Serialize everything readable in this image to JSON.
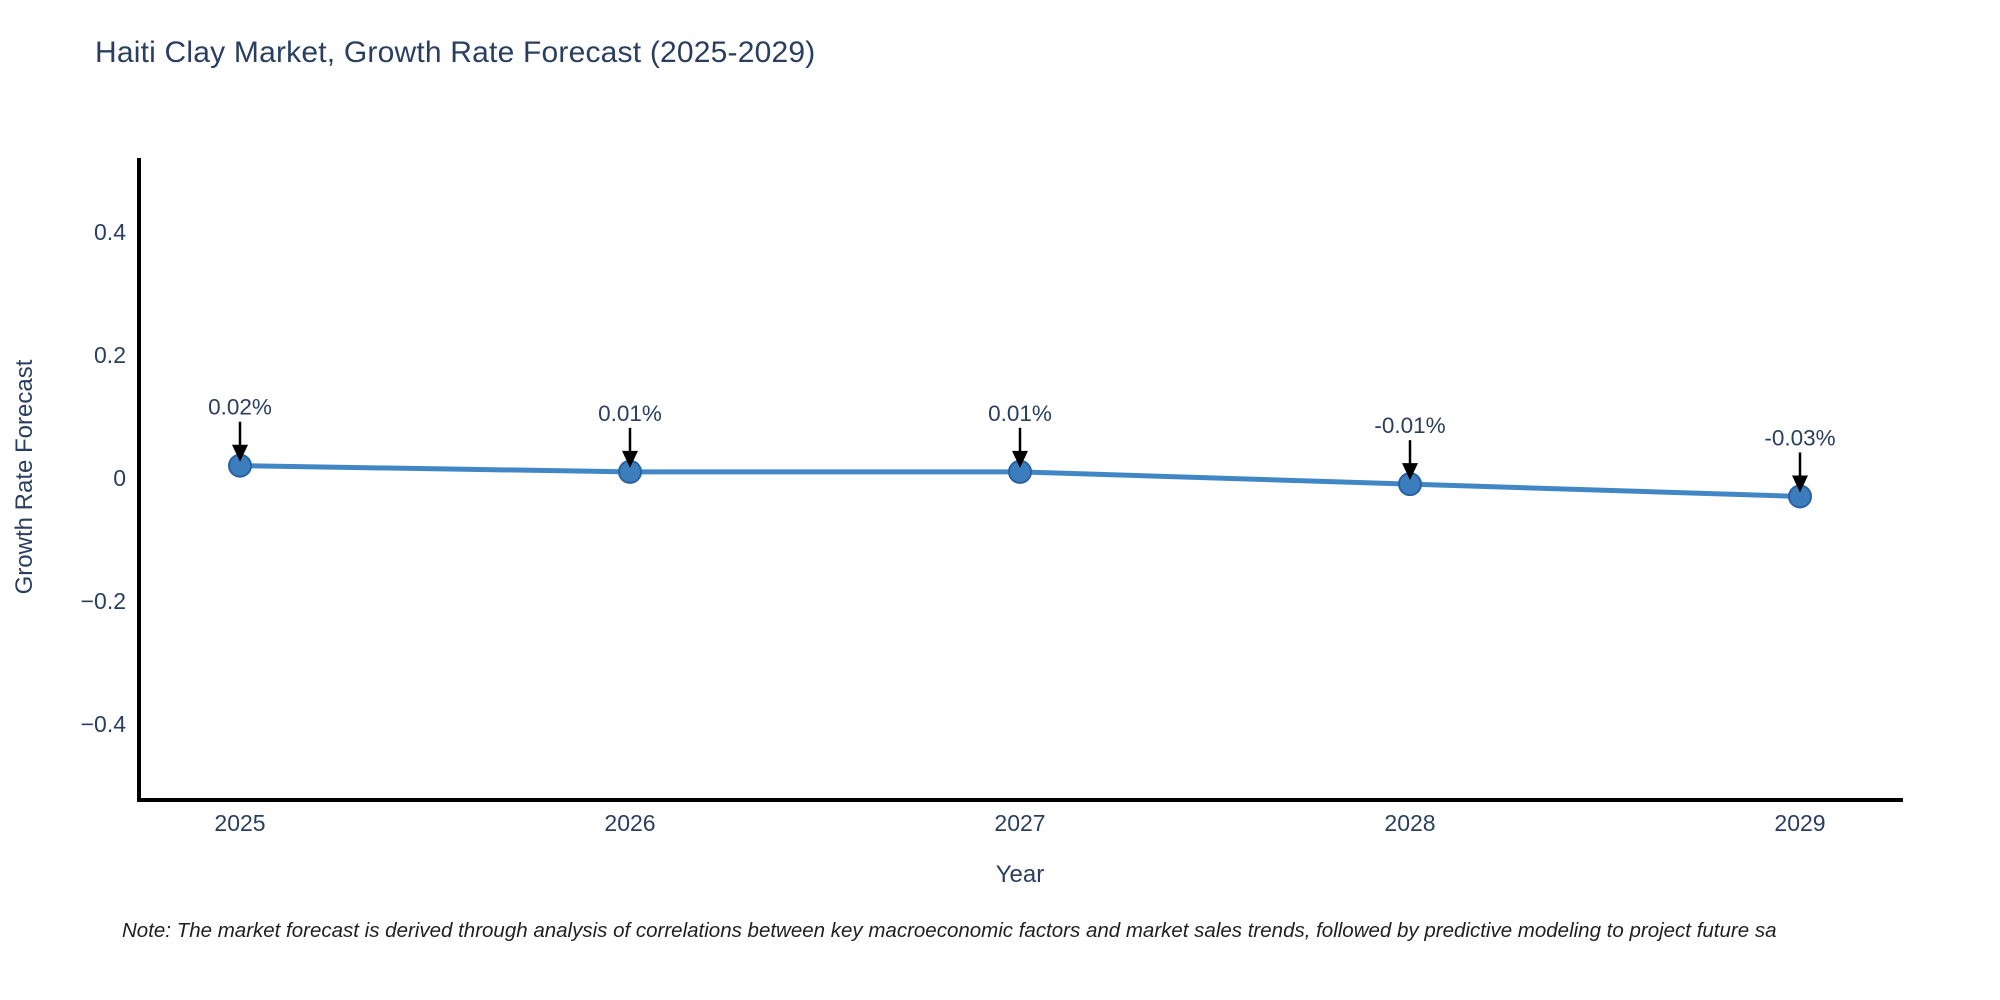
{
  "title": "Haiti Clay Market, Growth Rate Forecast (2025-2029)",
  "note": "Note: The market forecast is derived through analysis of correlations between key macroeconomic factors and market sales trends, followed by predictive modeling to project future sa",
  "chart_data": {
    "type": "line",
    "title": "Haiti Clay Market, Growth Rate Forecast (2025-2029)",
    "xlabel": "Year",
    "ylabel": "Growth Rate Forecast",
    "x": [
      "2025",
      "2026",
      "2027",
      "2028",
      "2029"
    ],
    "series": [
      {
        "name": "Growth Rate Forecast",
        "values": [
          0.02,
          0.01,
          0.01,
          -0.01,
          -0.03
        ]
      }
    ],
    "point_labels": [
      "0.02%",
      "0.01%",
      "0.01%",
      "-0.01%",
      "-0.03%"
    ],
    "annotation_style": "black-down-arrow-to-marker",
    "yticks": [
      {
        "value": 0.4,
        "label": "0.4"
      },
      {
        "value": 0.2,
        "label": "0.2"
      },
      {
        "value": 0,
        "label": "0"
      },
      {
        "value": -0.2,
        "label": "−0.2"
      },
      {
        "value": -0.4,
        "label": "−0.4"
      }
    ],
    "ylim": [
      -0.52,
      0.52
    ],
    "grid": false,
    "legend_position": "none",
    "colors": {
      "line": "#4287c5",
      "marker_fill": "#3c7dbd",
      "marker_edge": "#2a62a0",
      "axis_line": "#000000",
      "tick_text": "#2a3f5f",
      "annotation_text": "#2a3f5f",
      "arrow": "#000000",
      "title_text": "#2a3f5f"
    }
  }
}
